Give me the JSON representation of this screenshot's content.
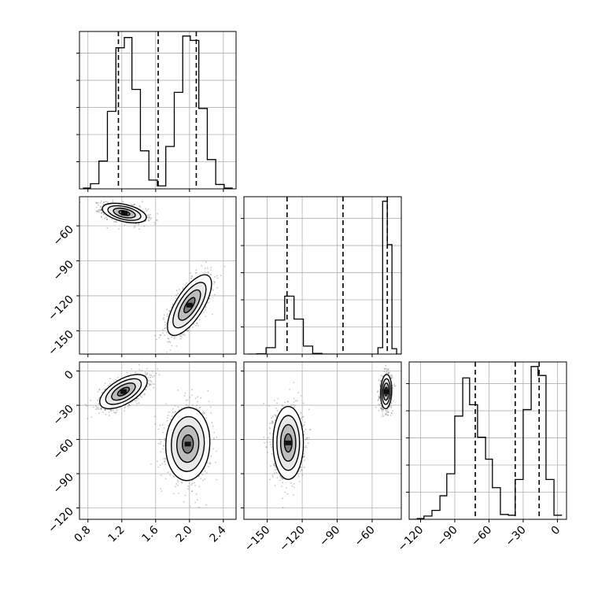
{
  "chart_data": {
    "type": "corner",
    "grid": true,
    "parameters": [
      {
        "range": [
          0.7,
          2.55
        ],
        "ticks": [
          0.8,
          1.2,
          1.6,
          2.0,
          2.4
        ],
        "tick_labels": [
          "0.8",
          "1.2",
          "1.6",
          "2.0",
          "2.4"
        ],
        "quantiles": [
          1.16,
          1.63,
          2.08
        ],
        "hist_bin_edges": [
          0.74,
          0.83,
          0.93,
          1.03,
          1.13,
          1.23,
          1.32,
          1.42,
          1.52,
          1.62,
          1.72,
          1.82,
          1.92,
          2.01,
          2.11,
          2.21,
          2.31,
          2.41,
          2.51
        ],
        "hist_counts": [
          1,
          7,
          38,
          106,
          193,
          207,
          136,
          52,
          12,
          4,
          58,
          132,
          209,
          203,
          110,
          40,
          6,
          1
        ]
      },
      {
        "range": [
          -170,
          -35
        ],
        "ticks": [
          -150,
          -120,
          -90,
          -60
        ],
        "tick_labels": [
          "−150",
          "−120",
          "−90",
          "−60"
        ],
        "quantiles": [
          -133,
          -85,
          -47
        ],
        "hist_bin_edges": [
          -167,
          -159,
          -151,
          -143,
          -135,
          -127,
          -119,
          -111,
          -103,
          -95,
          -87,
          -79,
          -71,
          -63,
          -55,
          -51,
          -47,
          -43,
          -39,
          -35
        ],
        "hist_counts": [
          0,
          1,
          20,
          107,
          182,
          110,
          25,
          2,
          0,
          0,
          0,
          0,
          0,
          0,
          20,
          480,
          344,
          17,
          0
        ]
      },
      {
        "range": [
          -130,
          8
        ],
        "ticks": [
          -120,
          -90,
          -60,
          -30,
          0
        ],
        "tick_labels": [
          "−120",
          "−90",
          "−60",
          "−30",
          "0"
        ],
        "quantiles": [
          -72,
          -37,
          -16
        ],
        "hist_bin_edges": [
          -130,
          -123,
          -117,
          -110,
          -103,
          -97,
          -90,
          -83,
          -77,
          -70,
          -63,
          -57,
          -50,
          -43,
          -37,
          -30,
          -23,
          -17,
          -10,
          -3,
          4
        ],
        "hist_counts": [
          0,
          1,
          4,
          11,
          29,
          56,
          127,
          174,
          141,
          101,
          74,
          39,
          6,
          5,
          49,
          135,
          188,
          177,
          49,
          5
        ]
      }
    ],
    "pairs": [
      {
        "x_param": 0,
        "y_param": 1,
        "clusters": [
          {
            "mean": [
              1.23,
              -49
            ],
            "sd": [
              0.13,
              4.2
            ],
            "corr": -0.45
          },
          {
            "mean": [
              2.0,
              -128
            ],
            "sd": [
              0.13,
              13
            ],
            "corr": 0.7
          }
        ]
      },
      {
        "x_param": 0,
        "y_param": 2,
        "clusters": [
          {
            "mean": [
              1.22,
              -18
            ],
            "sd": [
              0.14,
              7.5
            ],
            "corr": 0.6
          },
          {
            "mean": [
              1.98,
              -64
            ],
            "sd": [
              0.13,
              16
            ],
            "corr": 0.05
          }
        ]
      },
      {
        "x_param": 1,
        "y_param": 2,
        "clusters": [
          {
            "mean": [
              -48,
              -18
            ],
            "sd": [
              2.4,
              7.5
            ],
            "corr": 0.1
          },
          {
            "mean": [
              -132,
              -63
            ],
            "sd": [
              6.5,
              16
            ],
            "corr": 0.0
          }
        ]
      }
    ]
  }
}
